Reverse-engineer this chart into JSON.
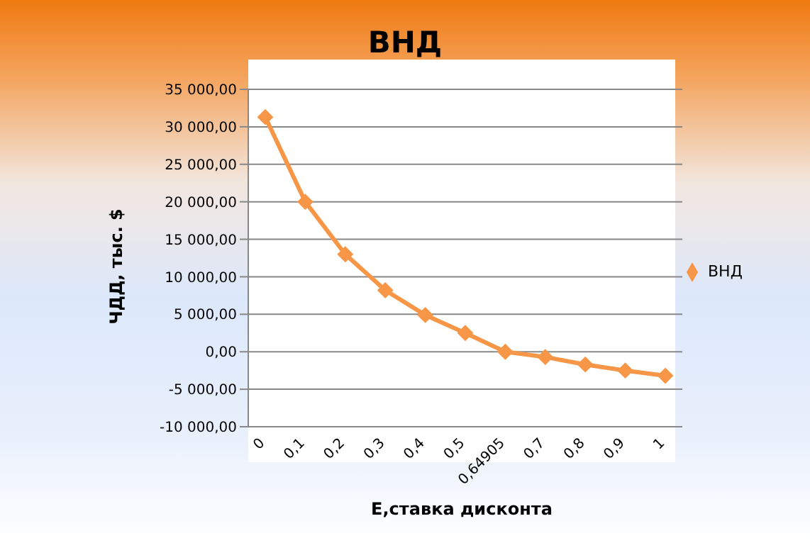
{
  "chart_data": {
    "type": "line",
    "title": "ВНД",
    "xlabel": "Е,ставка  дисконта",
    "ylabel": "ЧДД, тыс. $",
    "categories": [
      "0",
      "0,1",
      "0,2",
      "0,3",
      "0,4",
      "0,5",
      "0,64905",
      "0,7",
      "0,8",
      "0,9",
      "1"
    ],
    "series": [
      {
        "name": "ВНД",
        "color": "#f79646",
        "values": [
          31300,
          20000,
          13000,
          8200,
          4900,
          2500,
          0,
          -700,
          -1700,
          -2500,
          -3200
        ]
      }
    ],
    "ylim": [
      -10000,
      35000
    ],
    "yticks": [
      {
        "value": -10000,
        "label": "-10 000,00"
      },
      {
        "value": -5000,
        "label": "-5 000,00"
      },
      {
        "value": 0,
        "label": "0,00"
      },
      {
        "value": 5000,
        "label": "5 000,00"
      },
      {
        "value": 10000,
        "label": "10 000,00"
      },
      {
        "value": 15000,
        "label": "15 000,00"
      },
      {
        "value": 20000,
        "label": "20 000,00"
      },
      {
        "value": 25000,
        "label": "25 000,00"
      },
      {
        "value": 30000,
        "label": "30 000,00"
      },
      {
        "value": 35000,
        "label": "35 000,00"
      }
    ],
    "grid": "y",
    "legend": "right",
    "marker": "diamond",
    "line_style": "solid"
  }
}
